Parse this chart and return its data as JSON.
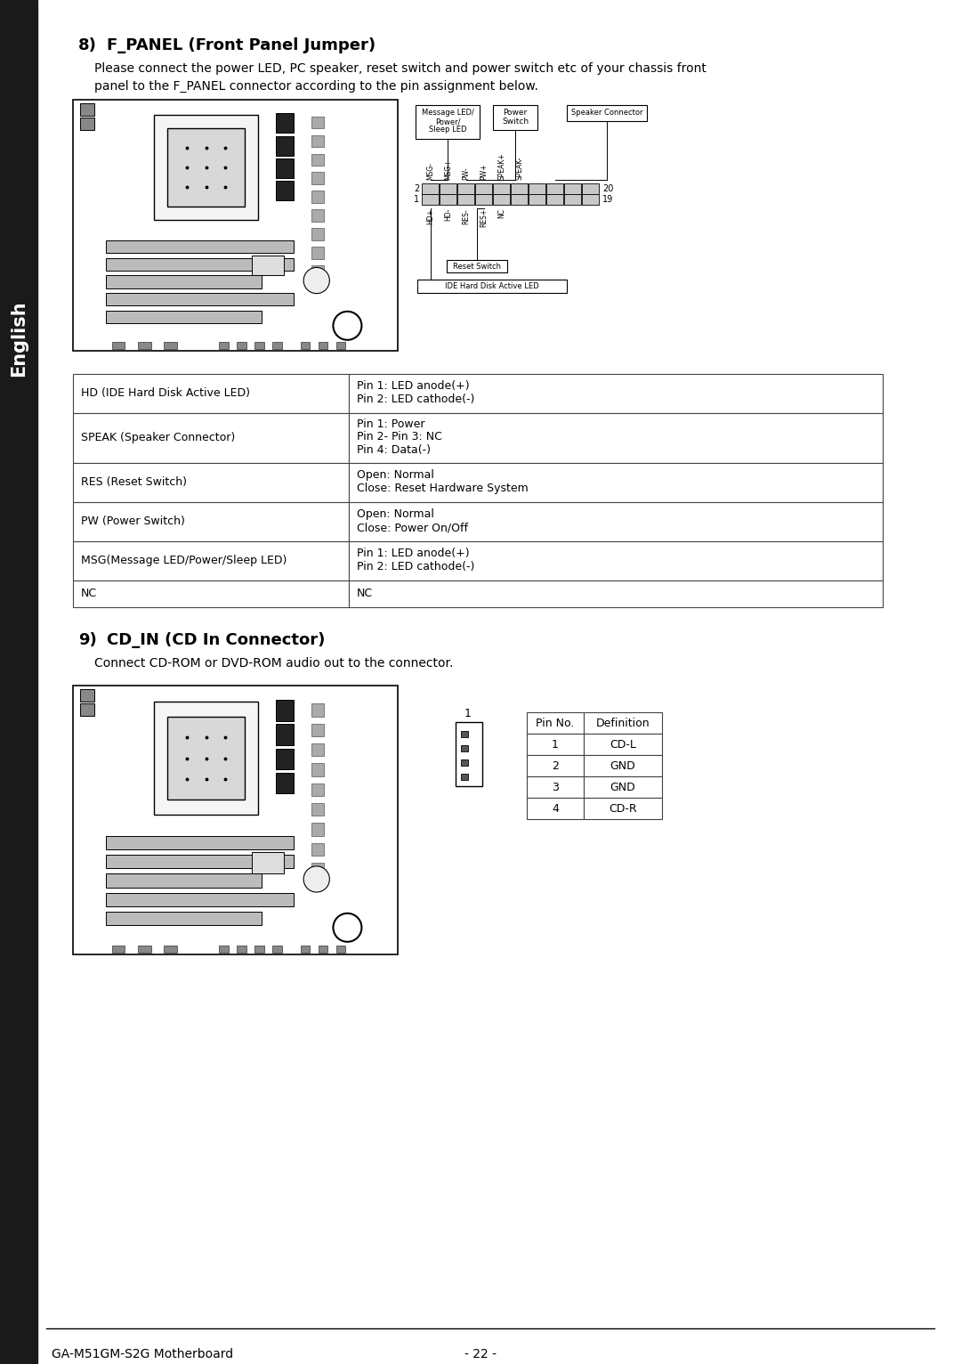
{
  "page_bg": "#ffffff",
  "sidebar_color": "#1a1a1a",
  "sidebar_text": "English",
  "sidebar_text_color": "#ffffff",
  "section8_number": "8)",
  "section8_title": "F_PANEL (Front Panel Jumper)",
  "section8_body_line1": "Please connect the power LED, PC speaker, reset switch and power switch etc of your chassis front",
  "section8_body_line2": "panel to the F_PANEL connector according to the pin assignment below.",
  "table_rows": [
    [
      "HD (IDE Hard Disk Active LED)",
      "Pin 1: LED anode(+)\nPin 2: LED cathode(-)"
    ],
    [
      "SPEAK (Speaker Connector)",
      "Pin 1: Power\nPin 2- Pin 3: NC\nPin 4: Data(-)"
    ],
    [
      "RES (Reset Switch)",
      "Open: Normal\nClose: Reset Hardware System"
    ],
    [
      "PW (Power Switch)",
      "Open: Normal\nClose: Power On/Off"
    ],
    [
      "MSG(Message LED/Power/Sleep LED)",
      "Pin 1: LED anode(+)\nPin 2: LED cathode(-)"
    ],
    [
      "NC",
      "NC"
    ]
  ],
  "table_row_heights": [
    44,
    56,
    44,
    44,
    44,
    30
  ],
  "section9_number": "9)",
  "section9_title": "CD_IN (CD In Connector)",
  "section9_body": "Connect CD-ROM or DVD-ROM audio out to the connector.",
  "cd_table_header": [
    "Pin No.",
    "Definition"
  ],
  "cd_table_rows": [
    [
      "1",
      "CD-L"
    ],
    [
      "2",
      "GND"
    ],
    [
      "3",
      "GND"
    ],
    [
      "4",
      "CD-R"
    ]
  ],
  "footer_left": "GA-M51GM-S2G Motherboard",
  "footer_right": "- 22 -",
  "fpanel_col_labels_top": [
    "MSG-",
    "MSG+",
    "PW-",
    "PW+",
    "SPEAK+",
    "SPEAK-"
  ],
  "fpanel_col_labels_bot": [
    "HD+",
    "HD-",
    "RES-",
    "RES+",
    "NC"
  ]
}
